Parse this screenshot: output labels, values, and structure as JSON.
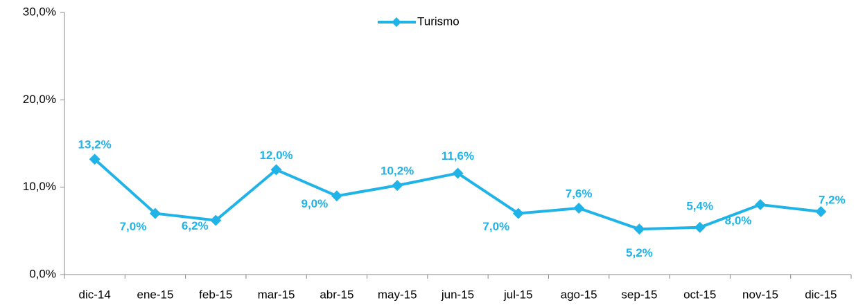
{
  "chart_data": {
    "type": "line",
    "categories": [
      "dic-14",
      "ene-15",
      "feb-15",
      "mar-15",
      "abr-15",
      "may-15",
      "jun-15",
      "jul-15",
      "ago-15",
      "sep-15",
      "oct-15",
      "nov-15",
      "dic-15"
    ],
    "series": [
      {
        "name": "Turismo",
        "color": "#1fb3e8",
        "values": [
          13.2,
          7.0,
          6.2,
          12.0,
          9.0,
          10.2,
          11.6,
          7.0,
          7.6,
          5.2,
          5.4,
          8.0,
          7.2
        ],
        "value_labels": [
          "13,2%",
          "7,0%",
          "6,2%",
          "12,0%",
          "9,0%",
          "10,2%",
          "11,6%",
          "7,0%",
          "7,6%",
          "5,2%",
          "5,4%",
          "8,0%",
          "7,2%"
        ]
      }
    ],
    "ylim": [
      0,
      30
    ],
    "yticks": [
      {
        "value": 0,
        "label": "0,0%"
      },
      {
        "value": 10,
        "label": "10,0%"
      },
      {
        "value": 20,
        "label": "20,0%"
      },
      {
        "value": 30,
        "label": "30,0%"
      }
    ],
    "legend": "top"
  }
}
